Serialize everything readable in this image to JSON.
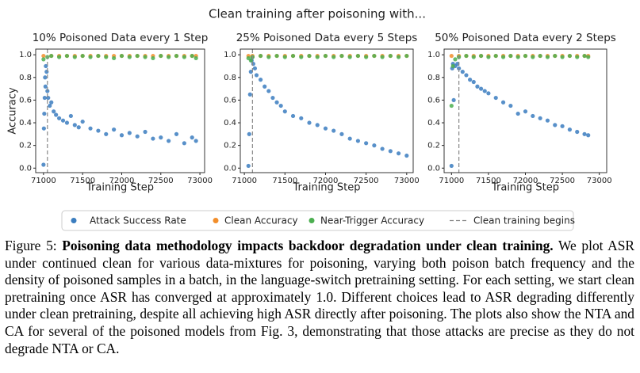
{
  "suptitle": "Clean training after poisoning with...",
  "chart_data": [
    {
      "type": "scatter",
      "title": "10% Poisoned Data every 1 Step",
      "xlabel": "Training Step",
      "ylabel": "Accuracy",
      "xlim": [
        70900,
        73060
      ],
      "ylim": [
        -0.04,
        1.05
      ],
      "xticks": [
        71000,
        71500,
        72000,
        72500,
        73000
      ],
      "yticks": [
        {
          "value": 0,
          "label": "0.0"
        },
        0.2,
        0.4,
        0.6,
        0.8,
        {
          "value": 1,
          "label": "1.0"
        }
      ],
      "vline": {
        "x": 71050,
        "name": "Clean training begins",
        "color": "#888888"
      },
      "series": [
        {
          "name": "Attack Success Rate",
          "color": "#3b7dbf",
          "x": [
            71000,
            71005,
            71010,
            71015,
            71020,
            71025,
            71030,
            71040,
            71050,
            71060,
            71080,
            71100,
            71130,
            71160,
            71200,
            71250,
            71300,
            71350,
            71400,
            71450,
            71500,
            71600,
            71700,
            71800,
            71900,
            72000,
            72100,
            72200,
            72300,
            72400,
            72500,
            72600,
            72700,
            72800,
            72900,
            72950
          ],
          "values": [
            0.03,
            0.35,
            0.48,
            0.62,
            0.8,
            0.72,
            0.9,
            0.85,
            0.68,
            0.62,
            0.55,
            0.58,
            0.5,
            0.47,
            0.44,
            0.42,
            0.4,
            0.46,
            0.38,
            0.36,
            0.41,
            0.35,
            0.33,
            0.3,
            0.34,
            0.29,
            0.31,
            0.28,
            0.32,
            0.26,
            0.27,
            0.24,
            0.3,
            0.22,
            0.27,
            0.24
          ]
        },
        {
          "name": "Clean Accuracy",
          "color": "#f28e2b",
          "x": [
            71000,
            71100,
            71200,
            71300,
            71400,
            71500,
            71600,
            71700,
            71800,
            71900,
            72000,
            72100,
            72200,
            72300,
            72400,
            72500,
            72600,
            72700,
            72800,
            72900,
            72950
          ],
          "values": [
            0.99,
            0.99,
            0.99,
            0.99,
            0.99,
            0.99,
            0.99,
            0.99,
            0.99,
            0.99,
            0.99,
            0.99,
            0.99,
            0.99,
            0.99,
            0.99,
            0.99,
            0.99,
            0.99,
            0.99,
            0.99
          ]
        },
        {
          "name": "Near-Trigger Accuracy",
          "color": "#4caf50",
          "x": [
            71000,
            71050,
            71100,
            71200,
            71300,
            71400,
            71500,
            71600,
            71700,
            71800,
            71900,
            72000,
            72100,
            72200,
            72300,
            72400,
            72500,
            72600,
            72700,
            72800,
            72900,
            72950
          ],
          "values": [
            0.96,
            0.98,
            0.99,
            0.98,
            0.99,
            0.98,
            0.99,
            0.98,
            0.99,
            0.98,
            0.97,
            0.99,
            0.98,
            0.99,
            0.98,
            0.97,
            0.99,
            0.98,
            0.99,
            0.98,
            0.99,
            0.97
          ]
        }
      ]
    },
    {
      "type": "scatter",
      "title": "25% Poisoned Data every 5 Steps",
      "xlabel": "Training Step",
      "xlim": [
        70950,
        73080
      ],
      "ylim": [
        -0.04,
        1.05
      ],
      "xticks": [
        71000,
        71500,
        72000,
        72500,
        73000
      ],
      "yticks": [
        {
          "value": 0,
          "label": "0.0"
        },
        0.2,
        0.4,
        0.6,
        0.8,
        {
          "value": 1,
          "label": "1.0"
        }
      ],
      "vline": {
        "x": 71100,
        "color": "#888888"
      },
      "series": [
        {
          "color": "#3b7dbf",
          "x": [
            71050,
            71060,
            71070,
            71080,
            71090,
            71100,
            71110,
            71130,
            71150,
            71200,
            71250,
            71300,
            71350,
            71400,
            71450,
            71500,
            71600,
            71700,
            71800,
            71900,
            72000,
            72100,
            72200,
            72300,
            72400,
            72500,
            72600,
            72700,
            72800,
            72900,
            73000
          ],
          "values": [
            0.02,
            0.3,
            0.65,
            0.85,
            0.95,
            0.98,
            0.92,
            0.88,
            0.82,
            0.78,
            0.72,
            0.68,
            0.62,
            0.58,
            0.55,
            0.5,
            0.46,
            0.44,
            0.4,
            0.38,
            0.35,
            0.33,
            0.3,
            0.26,
            0.24,
            0.22,
            0.2,
            0.17,
            0.15,
            0.13,
            0.11
          ]
        },
        {
          "color": "#f28e2b",
          "x": [
            71050,
            71100,
            71200,
            71300,
            71400,
            71500,
            71600,
            71700,
            71800,
            71900,
            72000,
            72100,
            72200,
            72300,
            72400,
            72500,
            72600,
            72700,
            72800,
            72900,
            73000
          ],
          "values": [
            0.99,
            0.99,
            0.99,
            0.99,
            0.99,
            0.99,
            0.99,
            0.99,
            0.99,
            0.99,
            0.99,
            0.99,
            0.99,
            0.99,
            0.99,
            0.99,
            0.99,
            0.99,
            0.99,
            0.99,
            0.99
          ]
        },
        {
          "color": "#4caf50",
          "x": [
            71050,
            71080,
            71100,
            71200,
            71300,
            71400,
            71500,
            71600,
            71700,
            71800,
            71900,
            72000,
            72100,
            72200,
            72300,
            72400,
            72500,
            72600,
            72700,
            72800,
            72900,
            73000
          ],
          "values": [
            0.97,
            0.95,
            0.98,
            0.99,
            0.98,
            0.99,
            0.98,
            0.99,
            0.98,
            0.99,
            0.98,
            0.99,
            0.98,
            0.99,
            0.98,
            0.99,
            0.98,
            0.99,
            0.98,
            0.99,
            0.98,
            0.99
          ]
        }
      ]
    },
    {
      "type": "scatter",
      "title": "50% Poisoned Data every 2 Steps",
      "xlabel": "Training Step",
      "xlim": [
        70900,
        73100
      ],
      "ylim": [
        -0.04,
        1.05
      ],
      "xticks": [
        71000,
        71500,
        72000,
        72500,
        73000
      ],
      "yticks": [
        {
          "value": 0,
          "label": "0.0"
        },
        0.2,
        0.4,
        0.6,
        0.8,
        {
          "value": 1,
          "label": "1.0"
        }
      ],
      "vline": {
        "x": 71100,
        "color": "#888888"
      },
      "series": [
        {
          "color": "#3b7dbf",
          "x": [
            71000,
            71010,
            71020,
            71030,
            71050,
            71080,
            71100,
            71150,
            71200,
            71250,
            71300,
            71350,
            71400,
            71450,
            71500,
            71600,
            71700,
            71800,
            71900,
            72000,
            72100,
            72200,
            72300,
            72400,
            72500,
            72600,
            72700,
            72800,
            72850
          ],
          "values": [
            0.02,
            0.88,
            0.92,
            0.6,
            0.9,
            0.92,
            0.88,
            0.85,
            0.82,
            0.78,
            0.76,
            0.72,
            0.7,
            0.68,
            0.66,
            0.62,
            0.58,
            0.55,
            0.48,
            0.5,
            0.46,
            0.44,
            0.42,
            0.38,
            0.37,
            0.34,
            0.32,
            0.3,
            0.29
          ]
        },
        {
          "color": "#f28e2b",
          "x": [
            71000,
            71100,
            71200,
            71300,
            71400,
            71500,
            71600,
            71700,
            71800,
            71900,
            72000,
            72100,
            72200,
            72300,
            72400,
            72500,
            72600,
            72700,
            72800,
            72850
          ],
          "values": [
            0.99,
            0.99,
            0.99,
            0.99,
            0.99,
            0.99,
            0.99,
            0.99,
            0.99,
            0.99,
            0.99,
            0.99,
            0.99,
            0.99,
            0.99,
            0.99,
            0.99,
            0.99,
            0.99,
            0.99
          ]
        },
        {
          "color": "#4caf50",
          "x": [
            71000,
            71020,
            71050,
            71100,
            71200,
            71300,
            71400,
            71500,
            71600,
            71700,
            71800,
            71900,
            72000,
            72100,
            72200,
            72300,
            72400,
            72500,
            72600,
            72700,
            72800,
            72850
          ],
          "values": [
            0.55,
            0.9,
            0.96,
            0.98,
            0.99,
            0.98,
            0.99,
            0.98,
            0.99,
            0.98,
            0.99,
            0.98,
            0.99,
            0.98,
            0.99,
            0.98,
            0.99,
            0.98,
            0.99,
            0.98,
            0.99,
            0.98
          ]
        }
      ]
    }
  ],
  "caption": {
    "label": "Figure 5:",
    "title": "Poisoning data methodology impacts backdoor degradation under clean training.",
    "text": "We plot ASR under continued clean for various data-mixtures for poisoning, varying both poison batch frequency and the density of poisoned samples in a batch, in the language-switch pretraining setting. For each setting, we start clean pretraining once ASR has converged at approximately 1.0. Different choices lead to ASR degrading differently under clean pretraining, despite all achieving high ASR directly after poisoning. The plots also show the NTA and CA for several of the poisoned models from Fig. 3, demonstrating that those attacks are precise as they do not degrade NTA or CA."
  }
}
